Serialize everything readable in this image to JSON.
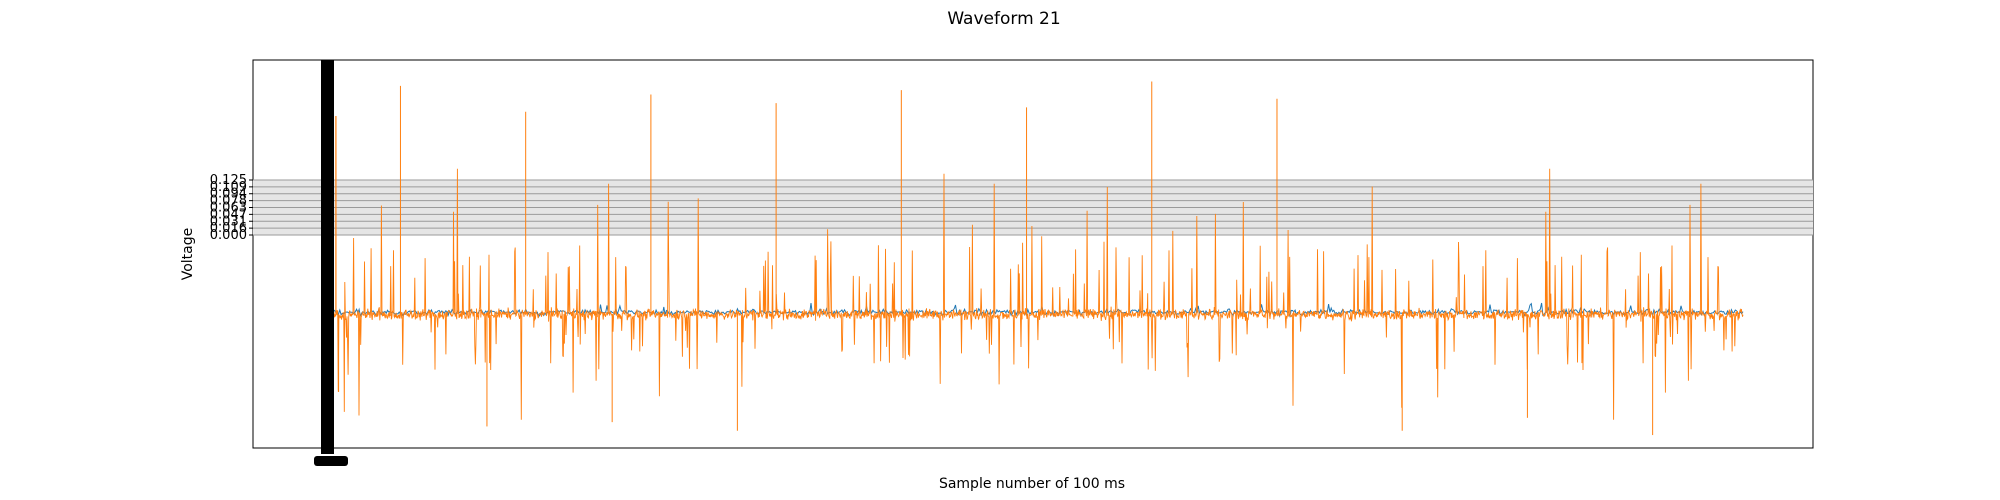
{
  "chart_data": {
    "type": "line",
    "title": "Waveform 21",
    "xlabel": "Sample number of 100 ms",
    "ylabel": "Voltage",
    "y_ticks": [
      "0.000",
      "0.016",
      "0.031",
      "0.047",
      "0.063",
      "0.078",
      "0.094",
      "0.109",
      "0.125"
    ],
    "y_tick_values": [
      0.0,
      0.0156,
      0.03125,
      0.0469,
      0.0625,
      0.0781,
      0.0938,
      0.1094,
      0.125
    ],
    "x_range": [
      0,
      1100
    ],
    "ylim": [
      -0.4,
      0.5
    ],
    "grid": "horizontal",
    "series": [
      {
        "color": "#1f77b4",
        "baseline": -0.085,
        "noise_amplitude": 0.012,
        "spike_amplitude": 0.03
      },
      {
        "color": "#ff7f0e",
        "baseline": -0.09,
        "noise_amplitude": 0.02,
        "spike_count": 520,
        "positive_peaks": [
          0.44,
          0.38,
          0.42,
          0.4,
          0.43,
          0.39,
          0.45,
          0.41
        ],
        "negative_peaks": [
          -0.36,
          -0.33,
          -0.37,
          -0.35,
          -0.34,
          -0.36
        ]
      }
    ]
  }
}
